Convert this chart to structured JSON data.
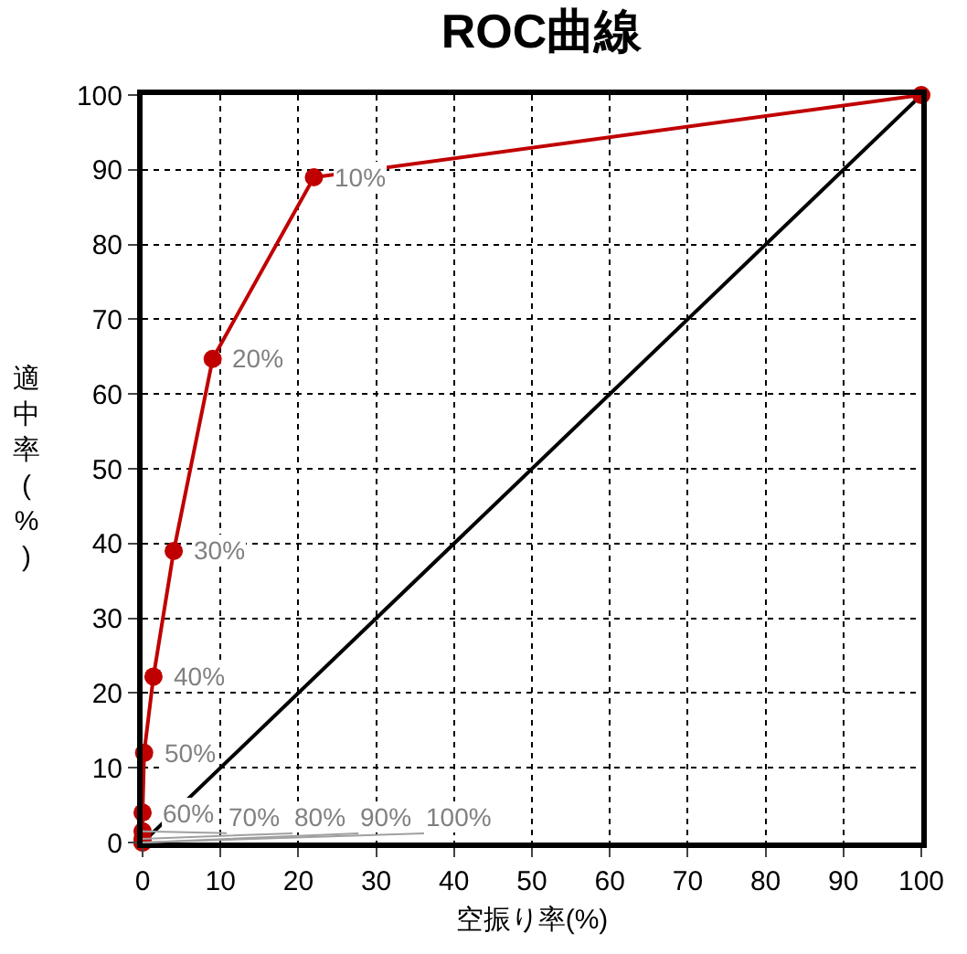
{
  "chart_data": {
    "type": "line",
    "title": "ROC曲線",
    "xlabel": "空振り率(%)",
    "ylabel": "適中率(%)",
    "xlim": [
      0,
      100
    ],
    "ylim": [
      0,
      100
    ],
    "xticks": [
      0,
      10,
      20,
      30,
      40,
      50,
      60,
      70,
      80,
      90,
      100
    ],
    "yticks": [
      0,
      10,
      20,
      30,
      40,
      50,
      60,
      70,
      80,
      90,
      100
    ],
    "grid": true,
    "series": [
      {
        "color": "#000000",
        "marker": "none",
        "x": [
          0,
          100
        ],
        "values": [
          0,
          100
        ]
      },
      {
        "color": "#c00000",
        "marker": "circle",
        "x": [
          100,
          22,
          9,
          4,
          1.4,
          0.2,
          0,
          0,
          0,
          0,
          0
        ],
        "values": [
          100,
          89,
          64.7,
          39,
          22.2,
          12,
          4,
          1.5,
          0.5,
          0,
          0
        ]
      }
    ],
    "annotations": [
      {
        "text": "10%",
        "x": 22,
        "y": 89
      },
      {
        "text": "20%",
        "x": 9,
        "y": 64.7
      },
      {
        "text": "30%",
        "x": 4,
        "y": 39
      },
      {
        "text": "40%",
        "x": 1.4,
        "y": 22.2
      },
      {
        "text": "50%",
        "x": 0.2,
        "y": 12
      },
      {
        "text": "60%",
        "x": 0,
        "y": 4
      },
      {
        "text": "70%",
        "x": 0,
        "y": 1.5
      },
      {
        "text": "80%",
        "x": 0,
        "y": 0.5
      },
      {
        "text": "90%",
        "x": 0,
        "y": 0
      },
      {
        "text": "100%",
        "x": 0,
        "y": 0
      }
    ]
  }
}
